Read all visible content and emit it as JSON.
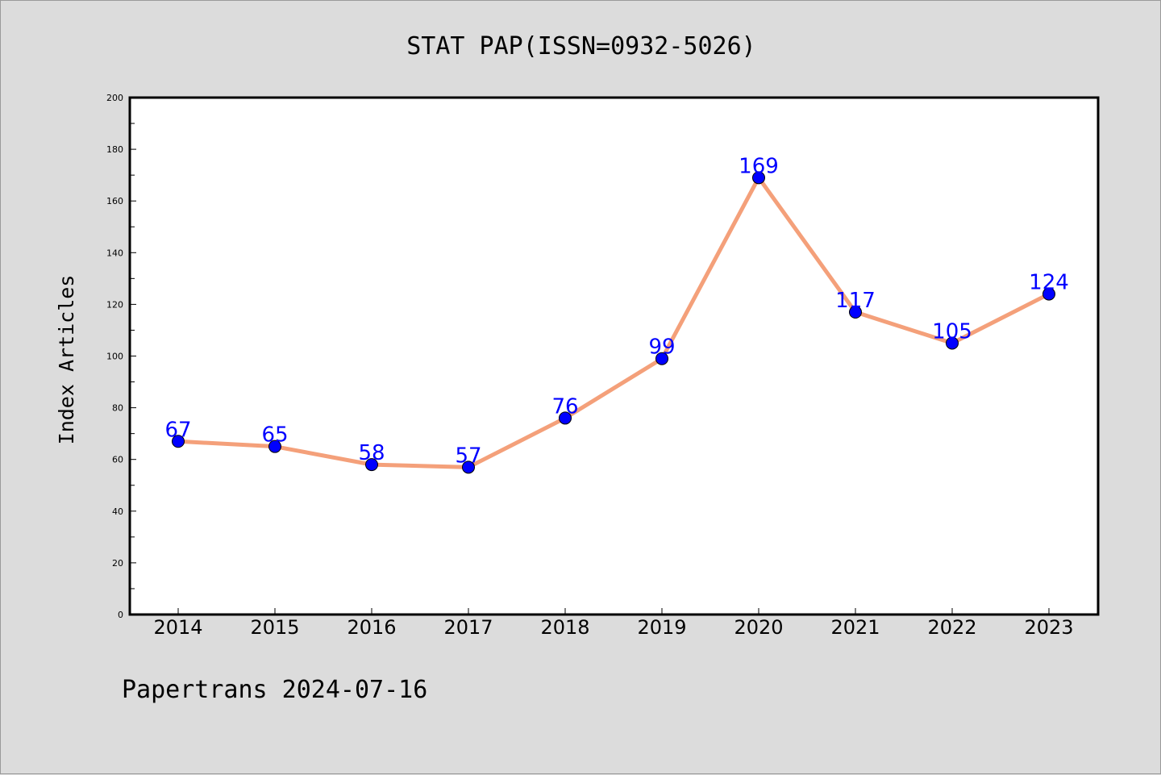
{
  "chart_data": {
    "type": "line",
    "title": "STAT PAP(ISSN=0932-5026)",
    "xlabel": "",
    "ylabel": "Index Articles",
    "categories": [
      "2014",
      "2015",
      "2016",
      "2017",
      "2018",
      "2019",
      "2020",
      "2021",
      "2022",
      "2023"
    ],
    "series": [
      {
        "values": [
          67,
          65,
          58,
          57,
          76,
          99,
          169,
          117,
          105,
          124
        ]
      }
    ],
    "ylim": [
      0,
      200
    ],
    "yticks": [
      0,
      20,
      40,
      60,
      80,
      100,
      120,
      140,
      160,
      180,
      200
    ],
    "grid": false,
    "legend": "none",
    "colors": {
      "line": "#f4a07a",
      "marker": "#0000ff",
      "data_label": "#0000ff",
      "background": "#dcdcdc",
      "plot_area": "#ffffff"
    }
  },
  "footer": {
    "text": "Papertrans 2024-07-16"
  }
}
